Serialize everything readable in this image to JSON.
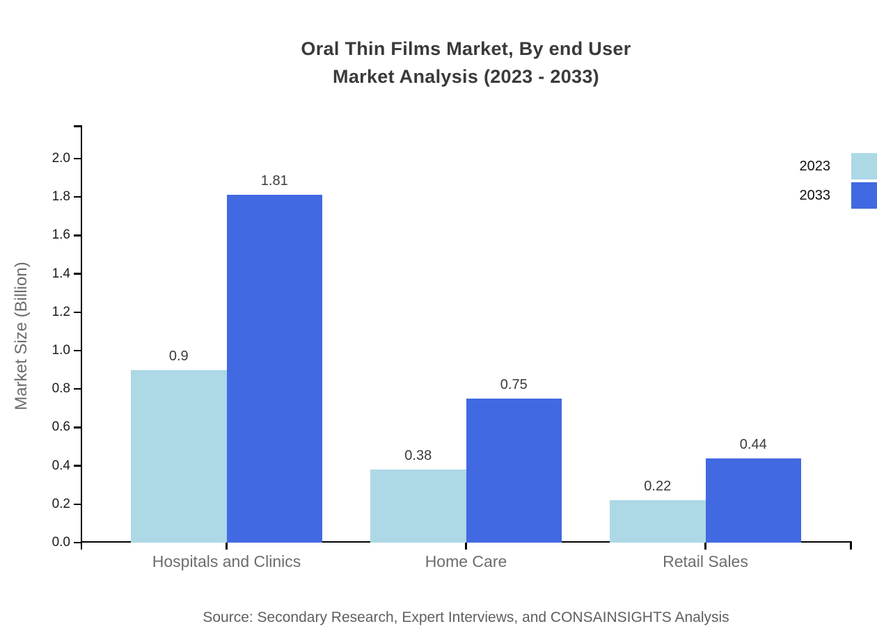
{
  "title": {
    "line1": "Oral Thin Films Market, By end User",
    "line2": "Market Analysis (2023 - 2033)"
  },
  "source": "Source: Secondary Research, Expert Interviews, and CONSAINSIGHTS Analysis",
  "chart_data": {
    "type": "bar",
    "title": "Oral Thin Films Market, By end User Market Analysis (2023 - 2033)",
    "xlabel": "",
    "ylabel": "Market Size (Billion)",
    "categories": [
      "Hospitals and Clinics",
      "Home Care",
      "Retail Sales"
    ],
    "series": [
      {
        "name": "2023",
        "color": "#ADD8E6",
        "values": [
          0.9,
          0.38,
          0.22
        ]
      },
      {
        "name": "2033",
        "color": "#4169E1",
        "values": [
          1.81,
          0.75,
          0.44
        ]
      }
    ],
    "value_labels": [
      "0.9",
      "1.81",
      "0.38",
      "0.75",
      "0.22",
      "0.44"
    ],
    "ylim": [
      0.0,
      2.0
    ],
    "ytick_step": 0.2,
    "yticks": [
      "0.0",
      "0.2",
      "0.4",
      "0.6",
      "0.8",
      "1.0",
      "1.2",
      "1.4",
      "1.6",
      "1.8",
      "2.0"
    ],
    "grid": false,
    "legend_position": "upper right",
    "axis_color": "#000000",
    "text_colors": {
      "title": "#3a3a3a",
      "tick_labels": "#1a1a1a",
      "category_labels": "#6d6d6d",
      "axis_label": "#6d6d6d",
      "source": "#5f5f5f"
    }
  }
}
